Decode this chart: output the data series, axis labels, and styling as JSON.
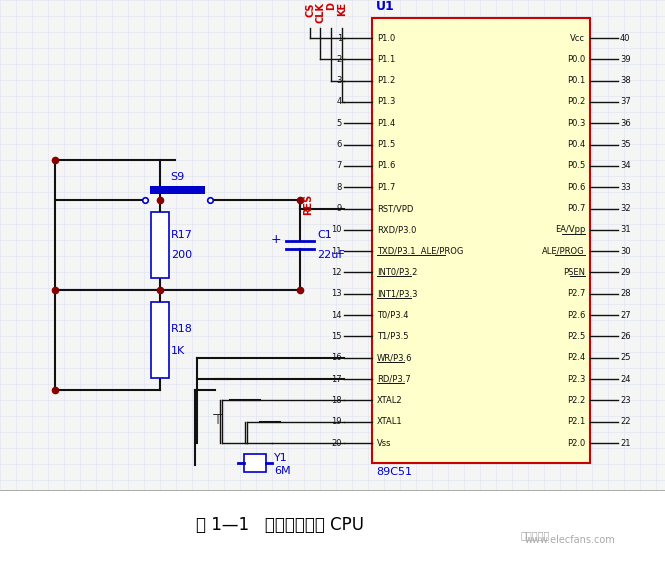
{
  "title": "图 1—1   中央处理单元 CPU",
  "watermark": "www.elecfans.com",
  "bg_color": "#f5f5f5",
  "grid_color": "#dde4ef",
  "chip_label": "U1",
  "chip_sublabel": "89C51",
  "chip_bg": "#ffffcc",
  "chip_border": "#cc0000",
  "left_pins": [
    {
      "num": 1,
      "name": "P1.0"
    },
    {
      "num": 2,
      "name": "P1.1"
    },
    {
      "num": 3,
      "name": "P1.2"
    },
    {
      "num": 4,
      "name": "P1.3"
    },
    {
      "num": 5,
      "name": "P1.4"
    },
    {
      "num": 6,
      "name": "P1.5"
    },
    {
      "num": 7,
      "name": "P1.6"
    },
    {
      "num": 8,
      "name": "P1.7"
    },
    {
      "num": 9,
      "name": "RST/VPD"
    },
    {
      "num": 10,
      "name": "RXD/P3.0"
    },
    {
      "num": 11,
      "name": "TXD/P3.1  ALE/PROG",
      "ul": true
    },
    {
      "num": 12,
      "name": "INT0/P3.2",
      "ul": true
    },
    {
      "num": 13,
      "name": "INT1/P3.3",
      "ul": true
    },
    {
      "num": 14,
      "name": "T0/P3.4"
    },
    {
      "num": 15,
      "name": "T1/P3.5",
      "ul_partial": "T1"
    },
    {
      "num": 16,
      "name": "WR/P3.6",
      "ul": true
    },
    {
      "num": 17,
      "name": "RD/P3.7",
      "ul": true
    },
    {
      "num": 18,
      "name": "XTAL2"
    },
    {
      "num": 19,
      "name": "XTAL1"
    },
    {
      "num": 20,
      "name": "Vss"
    }
  ],
  "right_pins": [
    {
      "num": 40,
      "name": "Vcc"
    },
    {
      "num": 39,
      "name": "P0.0"
    },
    {
      "num": 38,
      "name": "P0.1"
    },
    {
      "num": 37,
      "name": "P0.2"
    },
    {
      "num": 36,
      "name": "P0.3"
    },
    {
      "num": 35,
      "name": "P0.4"
    },
    {
      "num": 34,
      "name": "P0.5"
    },
    {
      "num": 33,
      "name": "P0.6"
    },
    {
      "num": 32,
      "name": "P0.7"
    },
    {
      "num": 31,
      "name": "EA/Vpp",
      "ul": true
    },
    {
      "num": 30,
      "name": "ALE/PROG",
      "ul": true
    },
    {
      "num": 29,
      "name": "PSEN",
      "ul": true
    },
    {
      "num": 28,
      "name": "P2.7"
    },
    {
      "num": 27,
      "name": "P2.6"
    },
    {
      "num": 26,
      "name": "P2.5"
    },
    {
      "num": 25,
      "name": "P2.4"
    },
    {
      "num": 24,
      "name": "P2.3"
    },
    {
      "num": 23,
      "name": "P2.2"
    },
    {
      "num": 22,
      "name": "P2.1"
    },
    {
      "num": 21,
      "name": "P2.0"
    }
  ],
  "top_labels_red": [
    "CS",
    "CLK",
    "D",
    "KE"
  ],
  "component_color": "#0000cc",
  "line_color": "#111111"
}
